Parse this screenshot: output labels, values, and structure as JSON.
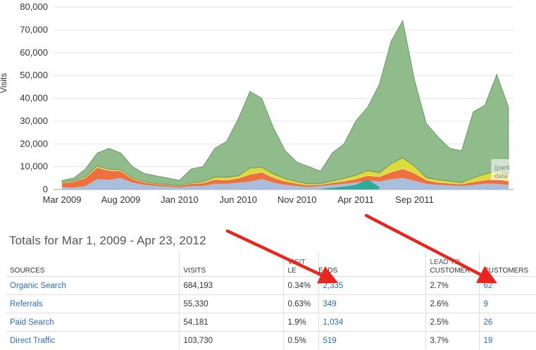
{
  "chart_data": {
    "type": "area",
    "stacked": true,
    "ylabel": "Visits",
    "ylim": [
      0,
      80000
    ],
    "yticks": [
      "0",
      "10,000",
      "20,000",
      "30,000",
      "40,000",
      "50,000",
      "60,000",
      "70,000",
      "80,000"
    ],
    "x_tick_labels": [
      {
        "label": "Mar 2009",
        "index": 0
      },
      {
        "label": "Aug 2009",
        "index": 5
      },
      {
        "label": "Jan 2010",
        "index": 10
      },
      {
        "label": "Jun 2010",
        "index": 15
      },
      {
        "label": "Nov 2010",
        "index": 20
      },
      {
        "label": "Apr 2011",
        "index": 25
      },
      {
        "label": "Sep 2011",
        "index": 30
      }
    ],
    "partial_label": [
      "(parti",
      "data"
    ],
    "series": [
      {
        "color": "#a8bedd",
        "values": [
          1000,
          800,
          1500,
          4500,
          4200,
          5000,
          3000,
          2000,
          1500,
          1200,
          800,
          1500,
          1500,
          2500,
          2500,
          3000,
          3500,
          4500,
          3000,
          2000,
          1500,
          1000,
          1500,
          2000,
          2500,
          3000,
          4000,
          3500,
          4500,
          5000,
          3800,
          2500,
          2000,
          1800,
          1500,
          2000,
          2500,
          2500,
          2000
        ]
      },
      {
        "color": "#ee7040",
        "values": [
          1800,
          2500,
          3500,
          5000,
          4000,
          3000,
          1500,
          1000,
          800,
          600,
          500,
          1000,
          1200,
          1800,
          1500,
          1800,
          3000,
          3000,
          2000,
          1500,
          1000,
          800,
          600,
          800,
          1000,
          1500,
          2000,
          2000,
          3000,
          4000,
          3200,
          1500,
          1000,
          800,
          800,
          1200,
          1500,
          2000,
          1500
        ]
      },
      {
        "color": "#f0d86c",
        "values": [
          200,
          200,
          300,
          400,
          300,
          300,
          200,
          200,
          100,
          100,
          100,
          200,
          200,
          300,
          300,
          300,
          400,
          400,
          300,
          200,
          200,
          100,
          100,
          100,
          200,
          200,
          300,
          300,
          300,
          400,
          300,
          200,
          200,
          200,
          100,
          100,
          200,
          200,
          200
        ]
      },
      {
        "color": "#dbdb3c",
        "values": [
          200,
          200,
          300,
          400,
          300,
          300,
          300,
          200,
          200,
          200,
          200,
          200,
          500,
          800,
          1000,
          900,
          2500,
          1800,
          1500,
          1000,
          700,
          500,
          400,
          800,
          1200,
          1500,
          2000,
          1500,
          3500,
          4500,
          3000,
          1000,
          1000,
          800,
          600,
          1800,
          2500,
          3500,
          3000
        ]
      },
      {
        "color": "#8fbc8a",
        "values": [
          800,
          1300,
          3400,
          5700,
          9200,
          7400,
          5000,
          3600,
          3400,
          2900,
          2400,
          6100,
          6600,
          12600,
          15700,
          25000,
          33600,
          30300,
          20200,
          12300,
          8600,
          7600,
          5400,
          12300,
          15100,
          23800,
          27700,
          38700,
          53700,
          60100,
          37700,
          23800,
          18800,
          14400,
          14000,
          28900,
          30300,
          42300,
          29300
        ]
      }
    ],
    "overlay_teal": {
      "color": "#2fab98",
      "start_index": 22,
      "values": [
        200,
        700,
        1200,
        2000,
        4500,
        1000
      ]
    }
  },
  "totals": {
    "title": "Totals for Mar 1, 2009 - Apr 23, 2012",
    "columns": [
      "SOURCES",
      "VISITS",
      "VISIT LEADS",
      "LEADS",
      "LEAD TO CUSTOMER",
      "CUSTOMERS"
    ],
    "visit_leads_header": {
      "top": "VISIT",
      "bottom": "LE",
      "suffix": "ADS"
    },
    "lead_cust_header": {
      "top": "LEAD TO",
      "bottom": "CUSTOMER"
    },
    "rows": [
      {
        "source": "Organic Search",
        "visits": "684,193",
        "visit_leads": "0.34%",
        "leads": "2,335",
        "lead_to_customer": "2.7%",
        "customers": "62"
      },
      {
        "source": "Referrals",
        "visits": "55,330",
        "visit_leads": "0.63%",
        "leads": "349",
        "lead_to_customer": "2.6%",
        "customers": "9"
      },
      {
        "source": "Paid Search",
        "visits": "54,181",
        "visit_leads": "1.9%",
        "leads": "1,034",
        "lead_to_customer": "2.5%",
        "customers": "26"
      },
      {
        "source": "Direct Traffic",
        "visits": "103,730",
        "visit_leads": "0.5%",
        "leads": "519",
        "lead_to_customer": "3.7%",
        "customers": "19"
      }
    ]
  },
  "colors": {
    "arrow": "#e8261e",
    "link": "#2a6db5"
  }
}
